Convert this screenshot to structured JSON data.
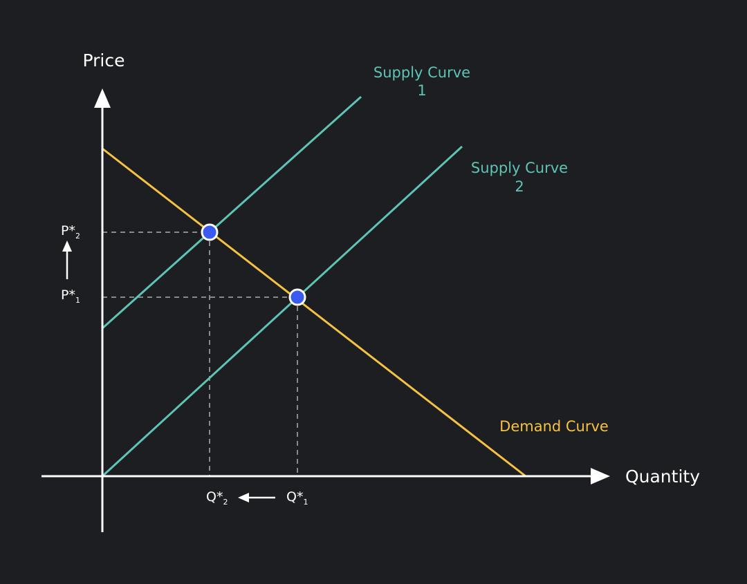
{
  "axes": {
    "y_label": "Price",
    "x_label": "Quantity"
  },
  "curves": {
    "supply_1": {
      "label": "Supply Curve",
      "number": "1"
    },
    "supply_2": {
      "label": "Supply Curve",
      "number": "2"
    },
    "demand": {
      "label": "Demand Curve"
    }
  },
  "price_labels": [
    {
      "symbol": "P*",
      "subscript": "2"
    },
    {
      "symbol": "P*",
      "subscript": "1"
    }
  ],
  "quantity_labels": [
    {
      "symbol": "Q*",
      "subscript": "2"
    },
    {
      "symbol": "Q*",
      "subscript": "1"
    }
  ]
}
